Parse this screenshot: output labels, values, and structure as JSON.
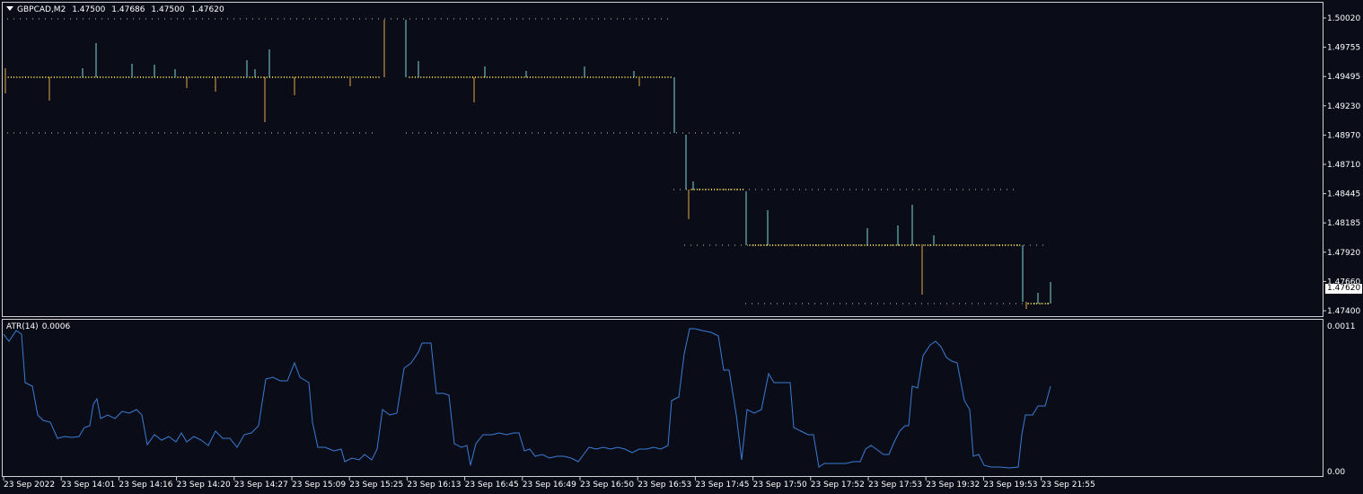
{
  "symbol": {
    "name": "GBPCAD,M2",
    "open": "1.47500",
    "high": "1.47686",
    "low": "1.47500",
    "close": "1.47620"
  },
  "price_axis": [
    "1.50020",
    "1.49755",
    "1.49495",
    "1.49230",
    "1.48970",
    "1.48710",
    "1.48445",
    "1.48185",
    "1.47920",
    "1.47660",
    "1.47400"
  ],
  "current_price": "1.47620",
  "atr": {
    "label": "ATR(14)",
    "value": "0.0006",
    "axis_top": "0.0011",
    "axis_bottom": "0.00"
  },
  "time_axis": [
    "23 Sep 2022",
    "23 Sep 14:01",
    "23 Sep 14:16",
    "23 Sep 14:20",
    "23 Sep 14:27",
    "23 Sep 15:09",
    "23 Sep 15:25",
    "23 Sep 16:13",
    "23 Sep 16:45",
    "23 Sep 16:49",
    "23 Sep 16:50",
    "23 Sep 16:53",
    "23 Sep 17:45",
    "23 Sep 17:50",
    "23 Sep 17:52",
    "23 Sep 17:53",
    "23 Sep 19:32",
    "23 Sep 19:53",
    "23 Sep 21:55"
  ],
  "colors": {
    "background": "#0a0d18",
    "bull": "#7fd6d6",
    "bear": "#e5a84a",
    "doji": "#e8d24a",
    "atr_line": "#3a7bd5",
    "border": "#d0d0d0"
  }
}
